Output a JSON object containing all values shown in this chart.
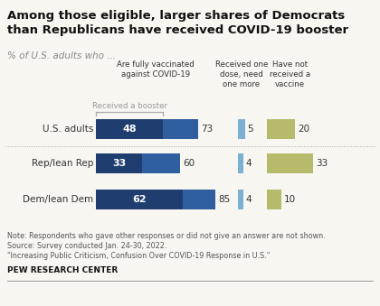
{
  "title": "Among those eligible, larger shares of Democrats\nthan Republicans have received COVID-19 booster",
  "subtitle": "% of U.S. adults who ...",
  "categories": [
    "U.S. adults",
    "Rep/lean Rep",
    "Dem/lean Dem"
  ],
  "booster_values": [
    48,
    33,
    62
  ],
  "fully_vax_values": [
    73,
    60,
    85
  ],
  "one_dose_values": [
    5,
    4,
    4
  ],
  "no_vax_values": [
    20,
    33,
    10
  ],
  "color_dark_blue": "#1f3d6e",
  "color_mid_blue": "#2f5f9e",
  "color_light_blue": "#7ab0d4",
  "color_olive": "#b5bb6a",
  "col_headers": [
    "Are fully vaccinated\nagainst COVID-19",
    "Received one\ndose, need\none more",
    "Have not\nreceived a\nvaccine"
  ],
  "booster_label": "Received a booster",
  "note_line1": "Note: Respondents who gave other responses or did not give an answer are not shown.",
  "note_line2": "Source: Survey conducted Jan. 24-30, 2022.",
  "note_line3": "\"Increasing Public Criticism, Confusion Over COVID-19 Response in U.S.\"",
  "source_label": "PEW RESEARCH CENTER",
  "bg_color": "#f7f6f1",
  "sep_color": "#aaaaaa",
  "text_color": "#333333",
  "gray_text": "#888888"
}
